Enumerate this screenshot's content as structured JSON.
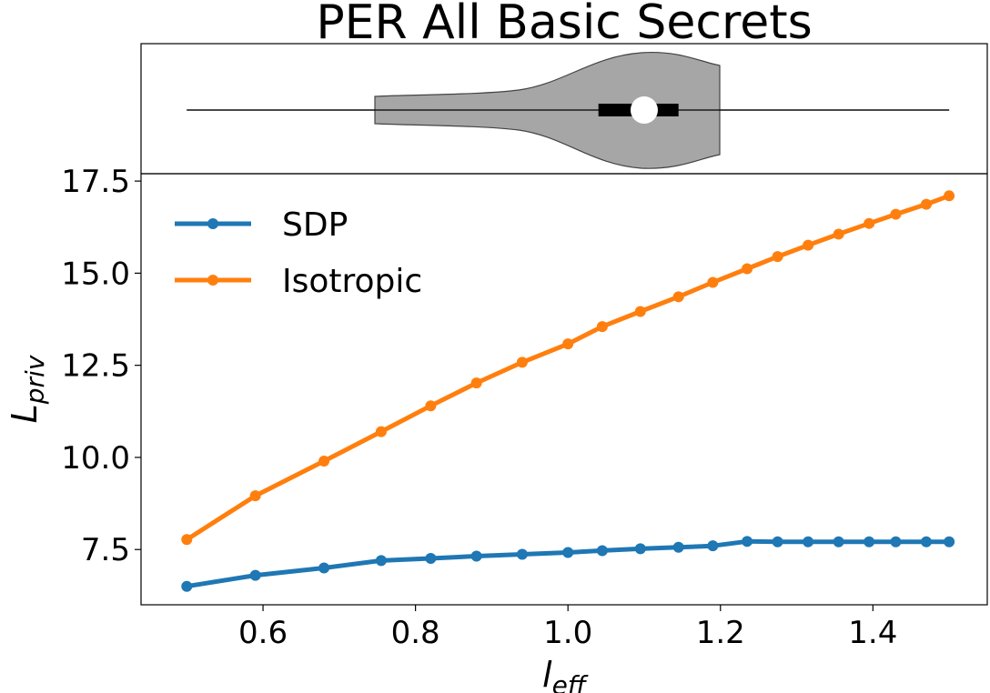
{
  "title": "PER All Basic Secrets",
  "chart_data": [
    {
      "type": "violin",
      "x_range": [
        0.5,
        1.5
      ],
      "median": 1.1,
      "q1": 1.04,
      "q3": 1.145,
      "min": 0.5,
      "max": 1.5
    },
    {
      "type": "line",
      "xlabel": {
        "base": "l",
        "sub": "eff"
      },
      "ylabel": {
        "base": "L",
        "sub": "priv"
      },
      "xlim": [
        0.44,
        1.55
      ],
      "ylim": [
        6.0,
        17.7
      ],
      "xticks": [
        0.6,
        0.8,
        1.0,
        1.2,
        1.4
      ],
      "xtick_labels": [
        "0.6",
        "0.8",
        "1.0",
        "1.2",
        "1.4"
      ],
      "yticks": [
        7.5,
        10.0,
        12.5,
        15.0,
        17.5
      ],
      "ytick_labels": [
        "7.5",
        "10.0",
        "12.5",
        "15.0",
        "17.5"
      ],
      "grid": false,
      "legend_position": "upper-left",
      "x": [
        0.5,
        0.59,
        0.68,
        0.755,
        0.82,
        0.88,
        0.94,
        1.0,
        1.045,
        1.095,
        1.145,
        1.19,
        1.235,
        1.275,
        1.315,
        1.355,
        1.395,
        1.43,
        1.47,
        1.5
      ],
      "series": [
        {
          "name": "SDP",
          "color": "#1f77b4",
          "values": [
            6.5,
            6.8,
            7.0,
            7.2,
            7.26,
            7.32,
            7.37,
            7.42,
            7.47,
            7.52,
            7.56,
            7.6,
            7.72,
            7.71,
            7.71,
            7.71,
            7.71,
            7.71,
            7.71,
            7.71
          ]
        },
        {
          "name": "Isotropic",
          "color": "#ff7f0e",
          "values": [
            7.77,
            8.96,
            9.9,
            10.7,
            11.4,
            12.02,
            12.58,
            13.08,
            13.55,
            13.96,
            14.36,
            14.75,
            15.12,
            15.45,
            15.76,
            16.06,
            16.35,
            16.6,
            16.87,
            17.1
          ]
        }
      ]
    }
  ]
}
